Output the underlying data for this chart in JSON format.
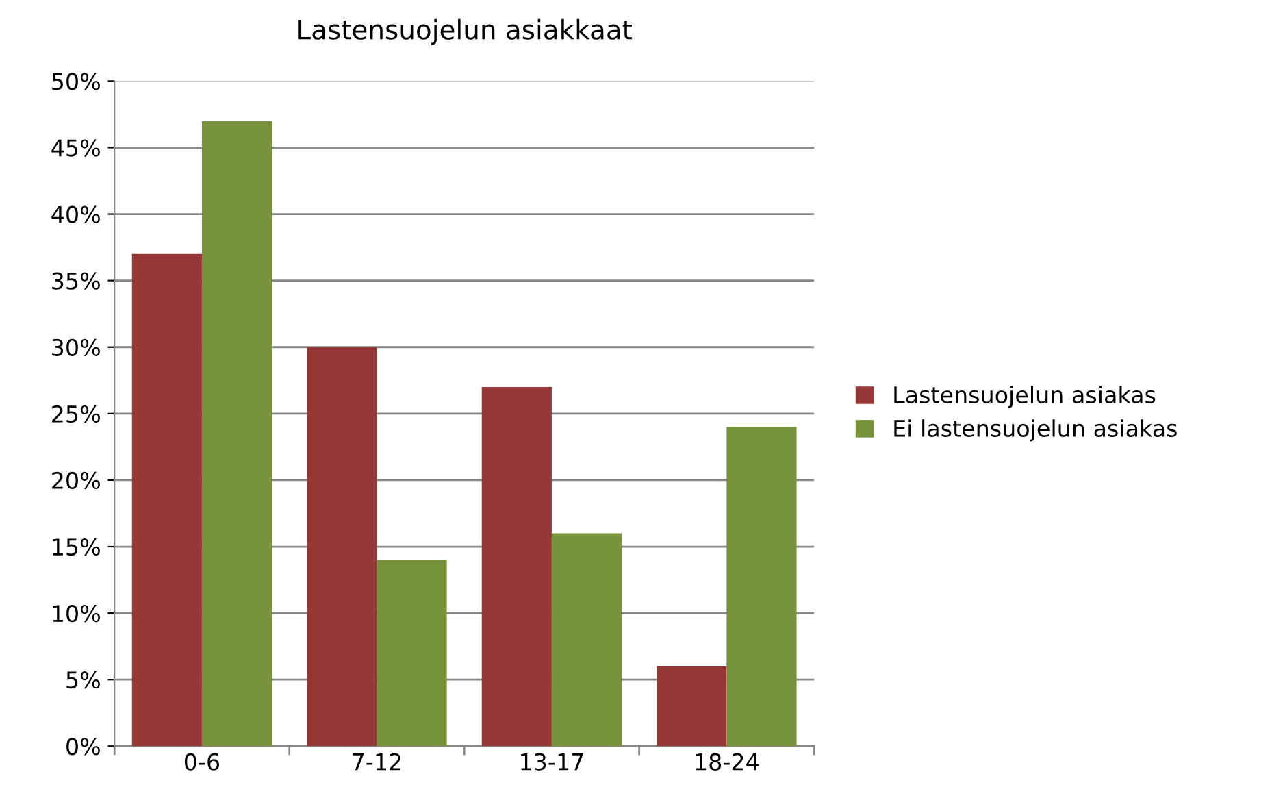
{
  "chart_data": {
    "type": "bar",
    "title": "Lastensuojelun asiakkaat",
    "categories": [
      "0-6",
      "7-12",
      "13-17",
      "18-24"
    ],
    "series": [
      {
        "name": "Lastensuojelun asiakas",
        "color": "#953735",
        "values": [
          37,
          30,
          27,
          6
        ]
      },
      {
        "name": "Ei lastensuojelun asiakas",
        "color": "#77933c",
        "values": [
          47,
          14,
          16,
          24
        ]
      }
    ],
    "ylim": [
      0,
      50
    ],
    "yticks": [
      {
        "value": 0,
        "label": "0%"
      },
      {
        "value": 5,
        "label": "5%"
      },
      {
        "value": 10,
        "label": "10%"
      },
      {
        "value": 15,
        "label": "15%"
      },
      {
        "value": 20,
        "label": "20%"
      },
      {
        "value": 25,
        "label": "25%"
      },
      {
        "value": 30,
        "label": "30%"
      },
      {
        "value": 35,
        "label": "35%"
      },
      {
        "value": 40,
        "label": "40%"
      },
      {
        "value": 45,
        "label": "45%"
      },
      {
        "value": 50,
        "label": "50%"
      }
    ],
    "grid": "y",
    "legend": "right"
  }
}
